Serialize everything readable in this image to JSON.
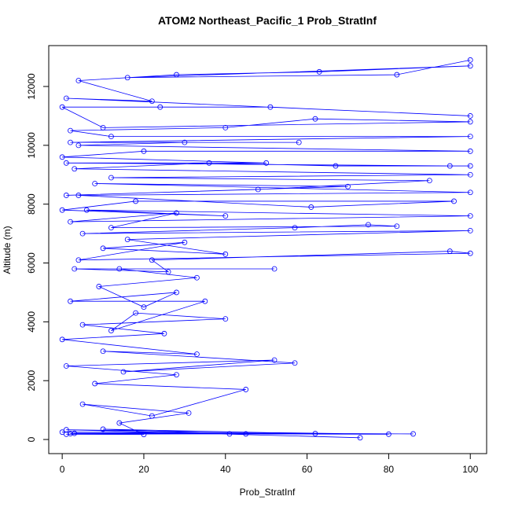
{
  "chart_data": {
    "type": "line",
    "title": "ATOM2 Northeast_Pacific_1 Prob_StratInf",
    "x_label": "Prob_StratInf",
    "y_label": "Altitude (m)",
    "xlim": [
      -3.3,
      104
    ],
    "ylim": [
      -480,
      13390
    ],
    "xticks": [
      0,
      20,
      40,
      60,
      80,
      100
    ],
    "yticks": [
      0,
      2000,
      4000,
      6000,
      8000,
      10000,
      12000
    ],
    "x": [
      73,
      1,
      80,
      2,
      45,
      0,
      86,
      3,
      62,
      10,
      41,
      1,
      20,
      14,
      31,
      5,
      22,
      45,
      8,
      28,
      1,
      52,
      15,
      57,
      10,
      33,
      0,
      25,
      5,
      40,
      18,
      12,
      35,
      2,
      28,
      20,
      9,
      33,
      14,
      52,
      3,
      26,
      22,
      95,
      100,
      4,
      30,
      10,
      40,
      16,
      100,
      5,
      57,
      75,
      82,
      12,
      28,
      2,
      100,
      6,
      40,
      0,
      18,
      96,
      61,
      4,
      100,
      8,
      70,
      1,
      48,
      90,
      12,
      100,
      3,
      36,
      67,
      100,
      95,
      1,
      50,
      0,
      20,
      100,
      4,
      30,
      58,
      2,
      100,
      12,
      2,
      40,
      62,
      100,
      10,
      0,
      24,
      51,
      100,
      1,
      22,
      4,
      28,
      63,
      100,
      16,
      82,
      100
    ],
    "series": [
      {
        "color": "#0000ff",
        "values": [
          60,
          330,
          180,
          200,
          190,
          250,
          190,
          210,
          200,
          350,
          190,
          180,
          170,
          560,
          900,
          1200,
          800,
          1700,
          1900,
          2200,
          2500,
          2700,
          2300,
          2600,
          3000,
          2900,
          3400,
          3600,
          3900,
          4100,
          4300,
          3700,
          4700,
          4700,
          5000,
          4500,
          5200,
          5500,
          5800,
          5800,
          5800,
          5700,
          6100,
          6400,
          6330,
          6100,
          6700,
          6500,
          6300,
          6800,
          7100,
          7000,
          7200,
          7300,
          7250,
          7200,
          7700,
          7400,
          7600,
          7800,
          7600,
          7800,
          8100,
          8100,
          7900,
          8300,
          8400,
          8700,
          8600,
          8300,
          8500,
          8800,
          8900,
          9000,
          9200,
          9400,
          9300,
          9300,
          9300,
          9400,
          9400,
          9600,
          9800,
          9800,
          10000,
          10100,
          10100,
          10100,
          10300,
          10300,
          10500,
          10600,
          10900,
          10800,
          10600,
          11300,
          11300,
          11300,
          11000,
          11600,
          11500,
          12200,
          12400,
          12500,
          12700,
          12300,
          12400,
          12900
        ]
      }
    ]
  }
}
